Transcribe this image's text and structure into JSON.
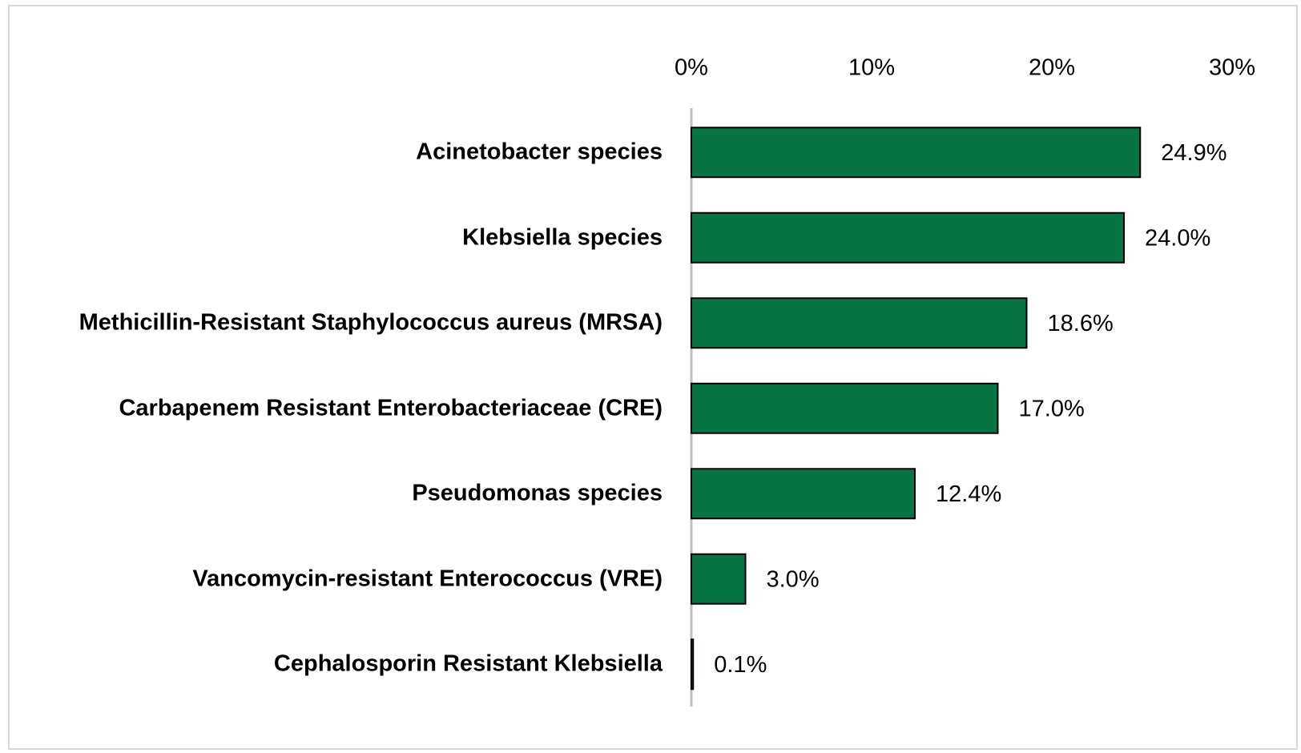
{
  "chart_data": {
    "type": "bar",
    "orientation": "horizontal",
    "categories": [
      "Acinetobacter species",
      "Klebsiella species",
      "Methicillin-Resistant Staphylococcus aureus (MRSA)",
      "Carbapenem Resistant Enterobacteriaceae (CRE)",
      "Pseudomonas species",
      "Vancomycin-resistant Enterococcus (VRE)",
      "Cephalosporin Resistant Klebsiella"
    ],
    "values": [
      24.9,
      24.0,
      18.6,
      17.0,
      12.4,
      3.0,
      0.1
    ],
    "value_labels": [
      "24.9%",
      "24.0%",
      "18.6%",
      "17.0%",
      "12.4%",
      "3.0%",
      "0.1%"
    ],
    "color": "#087443",
    "xlim": [
      0,
      30
    ],
    "xticks": [
      {
        "value": 0,
        "label": "0%"
      },
      {
        "value": 10,
        "label": "10%"
      },
      {
        "value": 20,
        "label": "20%"
      },
      {
        "value": 30,
        "label": "30%"
      }
    ],
    "grid": false
  }
}
